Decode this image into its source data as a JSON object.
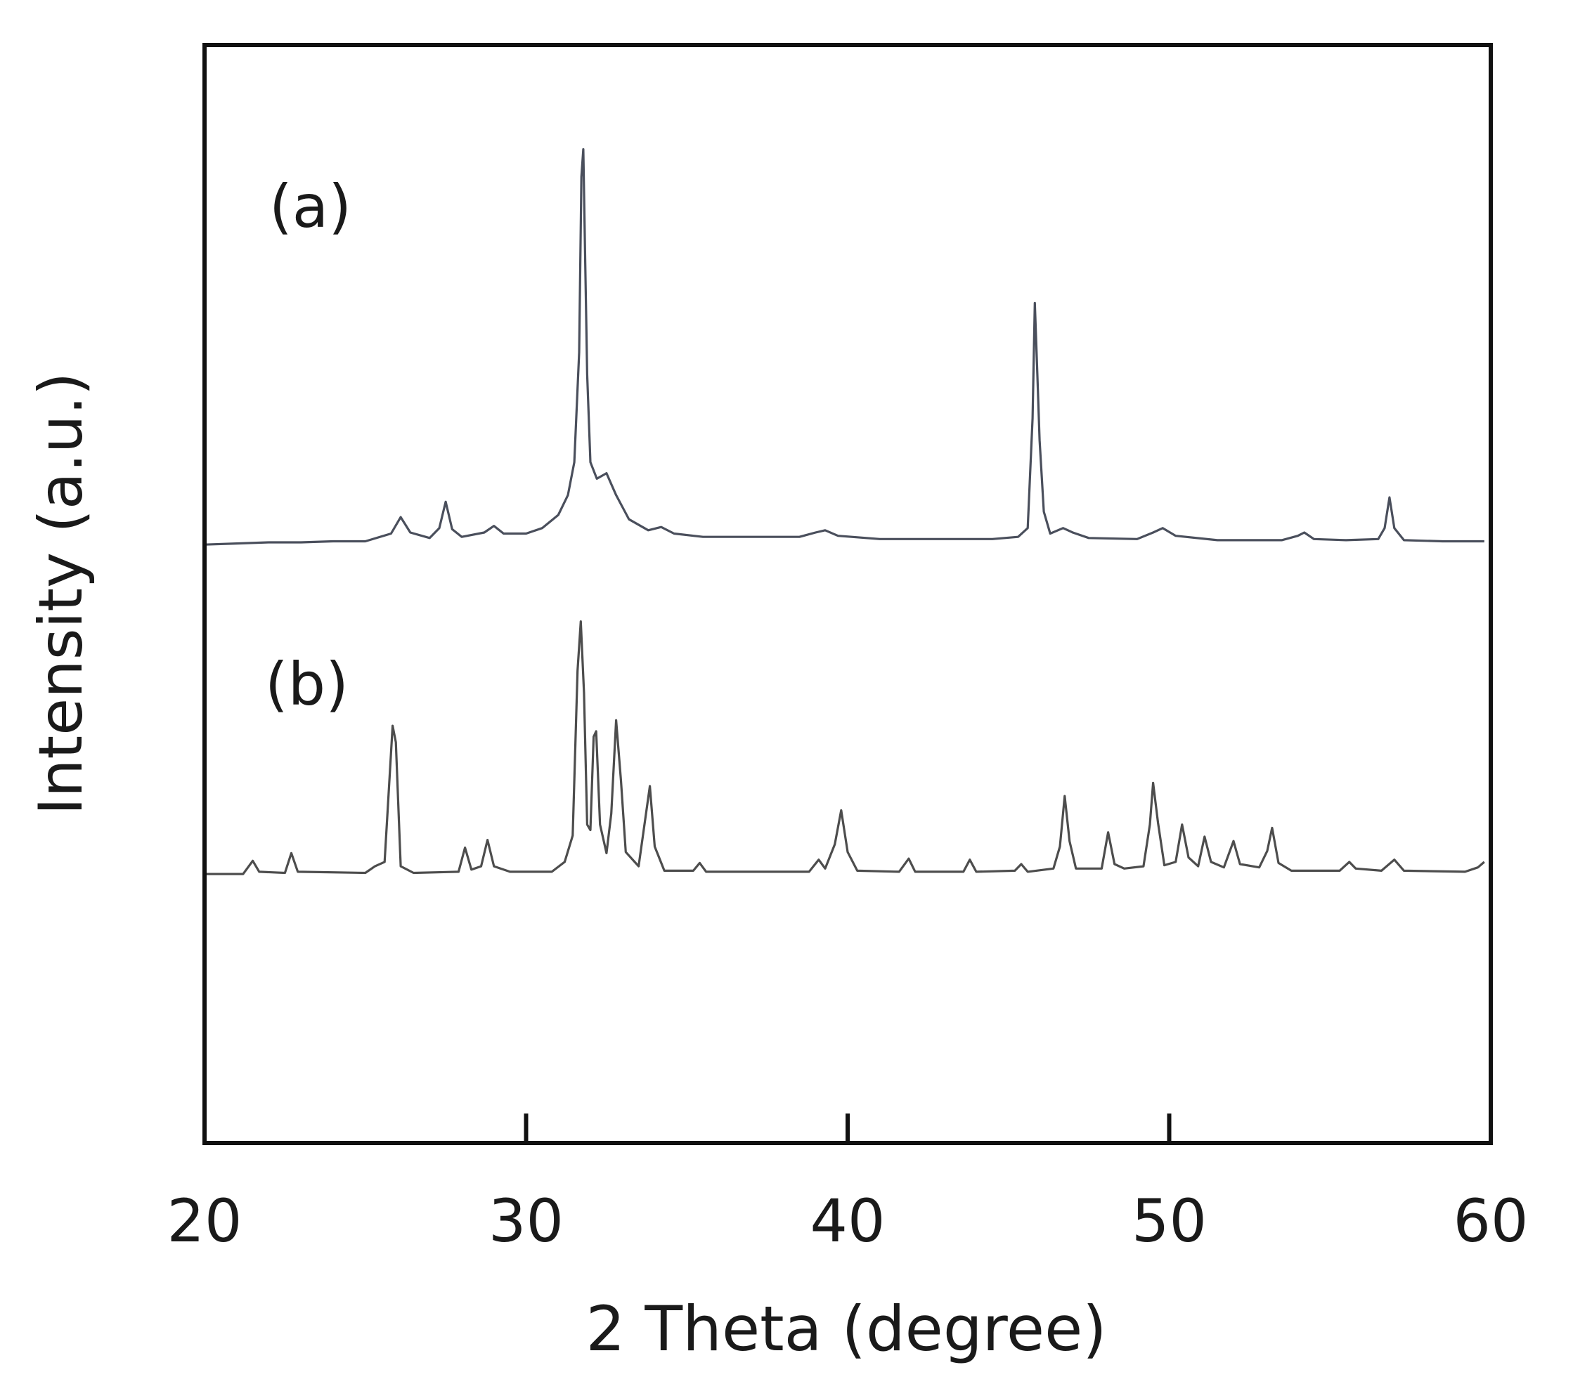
{
  "chart_data": {
    "type": "line",
    "title": "",
    "xlabel": "2 Theta (degree)",
    "ylabel": "Intensity (a.u.)",
    "xlim": [
      20,
      60
    ],
    "ylim": [
      0,
      1
    ],
    "x_ticks": [
      20,
      30,
      40,
      50,
      60
    ],
    "y_ticks_shown": false,
    "grid": false,
    "legend": "none",
    "panel_labels": [
      "(a)",
      "(b)"
    ],
    "series": [
      {
        "label": "(a)",
        "color": "#4a4f5c",
        "baseline": 0.545,
        "points": [
          [
            20.0,
            0.545
          ],
          [
            21.0,
            0.546
          ],
          [
            22.0,
            0.547
          ],
          [
            23.0,
            0.547
          ],
          [
            24.0,
            0.548
          ],
          [
            25.0,
            0.548
          ],
          [
            25.8,
            0.555
          ],
          [
            26.1,
            0.57
          ],
          [
            26.4,
            0.556
          ],
          [
            27.0,
            0.551
          ],
          [
            27.3,
            0.56
          ],
          [
            27.5,
            0.584
          ],
          [
            27.7,
            0.559
          ],
          [
            28.0,
            0.552
          ],
          [
            28.7,
            0.556
          ],
          [
            29.0,
            0.562
          ],
          [
            29.3,
            0.555
          ],
          [
            30.0,
            0.555
          ],
          [
            30.5,
            0.56
          ],
          [
            31.0,
            0.572
          ],
          [
            31.3,
            0.59
          ],
          [
            31.5,
            0.62
          ],
          [
            31.65,
            0.72
          ],
          [
            31.72,
            0.88
          ],
          [
            31.78,
            0.905
          ],
          [
            31.84,
            0.8
          ],
          [
            31.9,
            0.7
          ],
          [
            32.0,
            0.62
          ],
          [
            32.2,
            0.605
          ],
          [
            32.5,
            0.61
          ],
          [
            32.8,
            0.59
          ],
          [
            33.2,
            0.568
          ],
          [
            33.8,
            0.558
          ],
          [
            34.2,
            0.561
          ],
          [
            34.6,
            0.555
          ],
          [
            35.5,
            0.552
          ],
          [
            37.0,
            0.552
          ],
          [
            38.5,
            0.552
          ],
          [
            39.0,
            0.556
          ],
          [
            39.3,
            0.558
          ],
          [
            39.7,
            0.553
          ],
          [
            41.0,
            0.55
          ],
          [
            43.0,
            0.55
          ],
          [
            44.5,
            0.55
          ],
          [
            45.3,
            0.552
          ],
          [
            45.6,
            0.56
          ],
          [
            45.75,
            0.66
          ],
          [
            45.82,
            0.765
          ],
          [
            45.9,
            0.7
          ],
          [
            45.97,
            0.64
          ],
          [
            46.1,
            0.575
          ],
          [
            46.3,
            0.555
          ],
          [
            46.7,
            0.56
          ],
          [
            47.0,
            0.556
          ],
          [
            47.5,
            0.551
          ],
          [
            49.0,
            0.55
          ],
          [
            49.5,
            0.556
          ],
          [
            49.8,
            0.56
          ],
          [
            50.2,
            0.553
          ],
          [
            51.5,
            0.549
          ],
          [
            53.5,
            0.549
          ],
          [
            54.0,
            0.553
          ],
          [
            54.2,
            0.556
          ],
          [
            54.5,
            0.55
          ],
          [
            55.5,
            0.549
          ],
          [
            56.5,
            0.55
          ],
          [
            56.7,
            0.56
          ],
          [
            56.85,
            0.588
          ],
          [
            57.0,
            0.56
          ],
          [
            57.3,
            0.549
          ],
          [
            58.5,
            0.548
          ],
          [
            59.8,
            0.548
          ]
        ]
      },
      {
        "label": "(b)",
        "color": "#4d4d4d",
        "baseline": 0.245,
        "points": [
          [
            20.0,
            0.245
          ],
          [
            21.2,
            0.245
          ],
          [
            21.5,
            0.257
          ],
          [
            21.7,
            0.247
          ],
          [
            22.5,
            0.246
          ],
          [
            22.7,
            0.264
          ],
          [
            22.9,
            0.247
          ],
          [
            25.0,
            0.246
          ],
          [
            25.3,
            0.252
          ],
          [
            25.6,
            0.256
          ],
          [
            25.85,
            0.38
          ],
          [
            25.95,
            0.365
          ],
          [
            26.1,
            0.252
          ],
          [
            26.5,
            0.246
          ],
          [
            27.9,
            0.247
          ],
          [
            28.1,
            0.269
          ],
          [
            28.3,
            0.249
          ],
          [
            28.6,
            0.252
          ],
          [
            28.8,
            0.276
          ],
          [
            29.0,
            0.252
          ],
          [
            29.5,
            0.247
          ],
          [
            30.8,
            0.247
          ],
          [
            31.2,
            0.256
          ],
          [
            31.45,
            0.28
          ],
          [
            31.6,
            0.43
          ],
          [
            31.7,
            0.475
          ],
          [
            31.8,
            0.41
          ],
          [
            31.9,
            0.29
          ],
          [
            32.0,
            0.285
          ],
          [
            32.1,
            0.37
          ],
          [
            32.18,
            0.375
          ],
          [
            32.3,
            0.29
          ],
          [
            32.5,
            0.264
          ],
          [
            32.65,
            0.3
          ],
          [
            32.8,
            0.385
          ],
          [
            32.95,
            0.33
          ],
          [
            33.1,
            0.265
          ],
          [
            33.5,
            0.252
          ],
          [
            33.85,
            0.325
          ],
          [
            34.0,
            0.27
          ],
          [
            34.3,
            0.248
          ],
          [
            35.2,
            0.248
          ],
          [
            35.4,
            0.255
          ],
          [
            35.6,
            0.247
          ],
          [
            38.8,
            0.247
          ],
          [
            39.1,
            0.258
          ],
          [
            39.3,
            0.25
          ],
          [
            39.6,
            0.272
          ],
          [
            39.8,
            0.303
          ],
          [
            40.0,
            0.265
          ],
          [
            40.3,
            0.248
          ],
          [
            41.6,
            0.247
          ],
          [
            41.9,
            0.259
          ],
          [
            42.1,
            0.247
          ],
          [
            43.6,
            0.247
          ],
          [
            43.8,
            0.258
          ],
          [
            44.0,
            0.247
          ],
          [
            45.2,
            0.248
          ],
          [
            45.4,
            0.254
          ],
          [
            45.6,
            0.247
          ],
          [
            46.4,
            0.25
          ],
          [
            46.6,
            0.27
          ],
          [
            46.75,
            0.316
          ],
          [
            46.9,
            0.275
          ],
          [
            47.1,
            0.25
          ],
          [
            47.9,
            0.25
          ],
          [
            48.1,
            0.283
          ],
          [
            48.3,
            0.254
          ],
          [
            48.6,
            0.25
          ],
          [
            49.2,
            0.252
          ],
          [
            49.4,
            0.29
          ],
          [
            49.5,
            0.328
          ],
          [
            49.65,
            0.292
          ],
          [
            49.85,
            0.253
          ],
          [
            50.2,
            0.256
          ],
          [
            50.4,
            0.29
          ],
          [
            50.6,
            0.26
          ],
          [
            50.9,
            0.252
          ],
          [
            51.1,
            0.279
          ],
          [
            51.3,
            0.256
          ],
          [
            51.7,
            0.251
          ],
          [
            52.0,
            0.275
          ],
          [
            52.2,
            0.254
          ],
          [
            52.8,
            0.251
          ],
          [
            53.05,
            0.266
          ],
          [
            53.2,
            0.287
          ],
          [
            53.4,
            0.255
          ],
          [
            53.8,
            0.248
          ],
          [
            55.3,
            0.248
          ],
          [
            55.6,
            0.256
          ],
          [
            55.8,
            0.25
          ],
          [
            56.6,
            0.248
          ],
          [
            57.0,
            0.258
          ],
          [
            57.3,
            0.248
          ],
          [
            59.2,
            0.247
          ],
          [
            59.6,
            0.251
          ],
          [
            59.8,
            0.256
          ]
        ]
      }
    ]
  }
}
